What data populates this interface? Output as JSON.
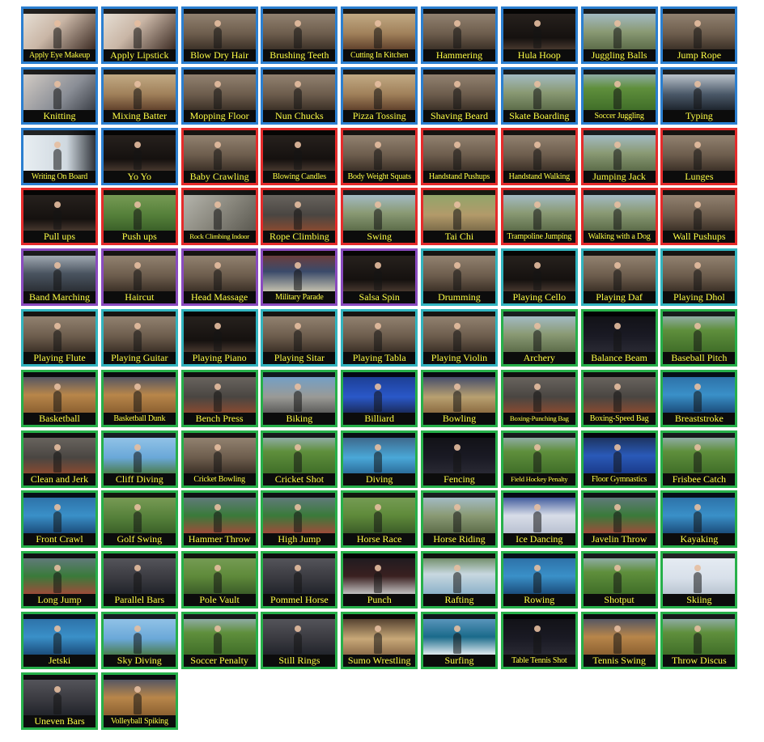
{
  "colors": {
    "group_border": {
      "blue": "#2b7fd0",
      "red": "#e52b2b",
      "purple": "#8a4bbf",
      "teal": "#32b4bf",
      "green": "#27b04a"
    },
    "label_text": "#ffff46",
    "label_background": "#0c0c0c"
  },
  "actions": [
    {
      "label": "Apply Eye Makeup",
      "group": "blue",
      "scene": "face closeup indoor"
    },
    {
      "label": "Apply Lipstick",
      "group": "blue",
      "scene": "face closeup indoor"
    },
    {
      "label": "Blow Dry Hair",
      "group": "blue",
      "scene": "indoor"
    },
    {
      "label": "Brushing Teeth",
      "group": "blue",
      "scene": "indoor"
    },
    {
      "label": "Cutting In Kitchen",
      "group": "blue",
      "scene": "kitchen"
    },
    {
      "label": "Hammering",
      "group": "blue",
      "scene": "indoor"
    },
    {
      "label": "Hula Hoop",
      "group": "blue",
      "scene": "dark indoor"
    },
    {
      "label": "Juggling Balls",
      "group": "blue",
      "scene": "outdoor"
    },
    {
      "label": "Jump Rope",
      "group": "blue",
      "scene": "indoor"
    },
    {
      "label": "Knitting",
      "group": "blue",
      "scene": "hands closeup"
    },
    {
      "label": "Mixing Batter",
      "group": "blue",
      "scene": "kitchen"
    },
    {
      "label": "Mopping Floor",
      "group": "blue",
      "scene": "indoor"
    },
    {
      "label": "Nun Chucks",
      "group": "blue",
      "scene": "indoor"
    },
    {
      "label": "Pizza Tossing",
      "group": "blue",
      "scene": "kitchen"
    },
    {
      "label": "Shaving Beard",
      "group": "blue",
      "scene": "indoor"
    },
    {
      "label": "Skate Boarding",
      "group": "blue",
      "scene": "outdoor"
    },
    {
      "label": "Soccer Juggling",
      "group": "blue",
      "scene": "field"
    },
    {
      "label": "Typing",
      "group": "blue",
      "scene": "keyboard"
    },
    {
      "label": "Writing On Board",
      "group": "blue",
      "scene": "whiteboard"
    },
    {
      "label": "Yo Yo",
      "group": "blue",
      "scene": "dark indoor"
    },
    {
      "label": "Baby Crawling",
      "group": "red",
      "scene": "indoor"
    },
    {
      "label": "Blowing Candles",
      "group": "red",
      "scene": "dark indoor"
    },
    {
      "label": "Body Weight Squats",
      "group": "red",
      "scene": "indoor"
    },
    {
      "label": "Handstand Pushups",
      "group": "red",
      "scene": "indoor"
    },
    {
      "label": "Handstand Walking",
      "group": "red",
      "scene": "indoor"
    },
    {
      "label": "Jumping Jack",
      "group": "red",
      "scene": "outdoor"
    },
    {
      "label": "Lunges",
      "group": "red",
      "scene": "indoor"
    },
    {
      "label": "Pull ups",
      "group": "red",
      "scene": "dark indoor"
    },
    {
      "label": "Push ups",
      "group": "red",
      "scene": "grass"
    },
    {
      "label": "Rock Climbing Indoor",
      "group": "red",
      "scene": "climbing wall"
    },
    {
      "label": "Rope Climbing",
      "group": "red",
      "scene": "gym"
    },
    {
      "label": "Swing",
      "group": "red",
      "scene": "outdoor"
    },
    {
      "label": "Tai Chi",
      "group": "red",
      "scene": "park"
    },
    {
      "label": "Trampoline Jumping",
      "group": "red",
      "scene": "outdoor"
    },
    {
      "label": "Walking with a Dog",
      "group": "red",
      "scene": "outdoor"
    },
    {
      "label": "Wall Pushups",
      "group": "red",
      "scene": "indoor"
    },
    {
      "label": "Band Marching",
      "group": "purple",
      "scene": "street"
    },
    {
      "label": "Haircut",
      "group": "purple",
      "scene": "indoor"
    },
    {
      "label": "Head Massage",
      "group": "purple",
      "scene": "indoor"
    },
    {
      "label": "Military Parade",
      "group": "purple",
      "scene": "square"
    },
    {
      "label": "Salsa Spin",
      "group": "purple",
      "scene": "dark indoor"
    },
    {
      "label": "Drumming",
      "group": "teal",
      "scene": "indoor"
    },
    {
      "label": "Playing Cello",
      "group": "teal",
      "scene": "dark indoor"
    },
    {
      "label": "Playing Daf",
      "group": "teal",
      "scene": "indoor"
    },
    {
      "label": "Playing Dhol",
      "group": "teal",
      "scene": "indoor"
    },
    {
      "label": "Playing Flute",
      "group": "teal",
      "scene": "indoor"
    },
    {
      "label": "Playing Guitar",
      "group": "teal",
      "scene": "indoor"
    },
    {
      "label": "Playing Piano",
      "group": "teal",
      "scene": "dark indoor"
    },
    {
      "label": "Playing Sitar",
      "group": "teal",
      "scene": "indoor"
    },
    {
      "label": "Playing Tabla",
      "group": "teal",
      "scene": "indoor"
    },
    {
      "label": "Playing Violin",
      "group": "teal",
      "scene": "indoor"
    },
    {
      "label": "Archery",
      "group": "green",
      "scene": "outdoor"
    },
    {
      "label": "Balance Beam",
      "group": "green",
      "scene": "dark arena"
    },
    {
      "label": "Baseball Pitch",
      "group": "green",
      "scene": "field"
    },
    {
      "label": "Basketball",
      "group": "green",
      "scene": "court"
    },
    {
      "label": "Basketball Dunk",
      "group": "green",
      "scene": "court"
    },
    {
      "label": "Bench Press",
      "group": "green",
      "scene": "gym"
    },
    {
      "label": "Biking",
      "group": "green",
      "scene": "road"
    },
    {
      "label": "Billiard",
      "group": "green",
      "scene": "pool table"
    },
    {
      "label": "Bowling",
      "group": "green",
      "scene": "lanes"
    },
    {
      "label": "Boxing-Punching Bag",
      "group": "green",
      "scene": "gym"
    },
    {
      "label": "Boxing-Speed Bag",
      "group": "green",
      "scene": "gym"
    },
    {
      "label": "Breaststroke",
      "group": "green",
      "scene": "water"
    },
    {
      "label": "Clean and Jerk",
      "group": "green",
      "scene": "gym"
    },
    {
      "label": "Cliff Diving",
      "group": "green",
      "scene": "sky"
    },
    {
      "label": "Cricket Bowling",
      "group": "green",
      "scene": "indoor"
    },
    {
      "label": "Cricket Shot",
      "group": "green",
      "scene": "field"
    },
    {
      "label": "Diving",
      "group": "green",
      "scene": "pool"
    },
    {
      "label": "Fencing",
      "group": "green",
      "scene": "dark arena"
    },
    {
      "label": "Field Hockey Penalty",
      "group": "green",
      "scene": "field"
    },
    {
      "label": "Floor Gymnastics",
      "group": "green",
      "scene": "blue floor"
    },
    {
      "label": "Frisbee Catch",
      "group": "green",
      "scene": "field"
    },
    {
      "label": "Front Crawl",
      "group": "green",
      "scene": "water"
    },
    {
      "label": "Golf Swing",
      "group": "green",
      "scene": "grass"
    },
    {
      "label": "Hammer Throw",
      "group": "green",
      "scene": "stadium"
    },
    {
      "label": "High Jump",
      "group": "green",
      "scene": "stadium"
    },
    {
      "label": "Horse Race",
      "group": "green",
      "scene": "track"
    },
    {
      "label": "Horse Riding",
      "group": "green",
      "scene": "outdoor"
    },
    {
      "label": "Ice Dancing",
      "group": "green",
      "scene": "rink"
    },
    {
      "label": "Javelin Throw",
      "group": "green",
      "scene": "stadium"
    },
    {
      "label": "Kayaking",
      "group": "green",
      "scene": "water"
    },
    {
      "label": "Long Jump",
      "group": "green",
      "scene": "stadium"
    },
    {
      "label": "Parallel Bars",
      "group": "green",
      "scene": "arena"
    },
    {
      "label": "Pole Vault",
      "group": "green",
      "scene": "track"
    },
    {
      "label": "Pommel Horse",
      "group": "green",
      "scene": "arena"
    },
    {
      "label": "Punch",
      "group": "green",
      "scene": "boxing ring"
    },
    {
      "label": "Rafting",
      "group": "green",
      "scene": "river"
    },
    {
      "label": "Rowing",
      "group": "green",
      "scene": "water"
    },
    {
      "label": "Shotput",
      "group": "green",
      "scene": "field"
    },
    {
      "label": "Skiing",
      "group": "green",
      "scene": "snow"
    },
    {
      "label": "Jetski",
      "group": "green",
      "scene": "water"
    },
    {
      "label": "Sky Diving",
      "group": "green",
      "scene": "sky"
    },
    {
      "label": "Soccer Penalty",
      "group": "green",
      "scene": "field"
    },
    {
      "label": "Still Rings",
      "group": "green",
      "scene": "arena"
    },
    {
      "label": "Sumo Wrestling",
      "group": "green",
      "scene": "ring"
    },
    {
      "label": "Surfing",
      "group": "green",
      "scene": "wave"
    },
    {
      "label": "Table Tennis Shot",
      "group": "green",
      "scene": "dark arena"
    },
    {
      "label": "Tennis Swing",
      "group": "green",
      "scene": "court"
    },
    {
      "label": "Throw Discus",
      "group": "green",
      "scene": "field"
    },
    {
      "label": "Uneven Bars",
      "group": "green",
      "scene": "arena"
    },
    {
      "label": "Volleyball Spiking",
      "group": "green",
      "scene": "court"
    }
  ]
}
